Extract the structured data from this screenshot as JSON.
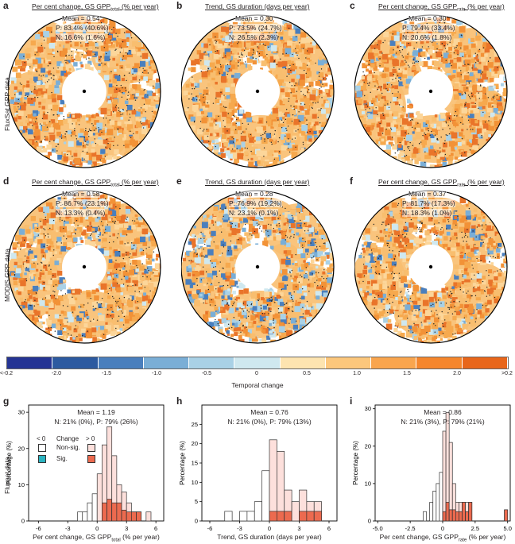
{
  "panels": [
    {
      "label": "a",
      "title": "Per cent change, GS GPP",
      "sub": "total",
      "title_tail": " (% per year)",
      "mean": "Mean = 0.54",
      "p": "P: 83.4% (40.6%)",
      "n": "N: 16.6% (1.6%)"
    },
    {
      "label": "b",
      "title": "Trend, GS duration (days per year)",
      "sub": "",
      "title_tail": "",
      "mean": "Mean = 0.30",
      "p": "P: 73.5% (24.7%)",
      "n": "N: 26.5% (2.3%)"
    },
    {
      "label": "c",
      "title": "Per cent change, GS GPP",
      "sub": "rate",
      "title_tail": " (% per year)",
      "mean": "Mean = 0.30",
      "p": "P: 79.4% (33.4%)",
      "n": "N: 20.6% (1.8%)"
    },
    {
      "label": "d",
      "title": "Per cent change, GS GPP",
      "sub": "total",
      "title_tail": " (% per year)",
      "mean": "Mean = 0.58",
      "p": "P: 86.7% (23.1%)",
      "n": "N: 13.3% (0.4%)"
    },
    {
      "label": "e",
      "title": "Trend, GS duration (days per year)",
      "sub": "",
      "title_tail": "",
      "mean": "Mean = 0.28",
      "p": "P: 76.9% (19.2%)",
      "n": "N: 23.1% (0.1%)"
    },
    {
      "label": "f",
      "title": "Per cent change, GS GPP",
      "sub": "rate",
      "title_tail": " (% per year)",
      "mean": "Mean = 0.37",
      "p": "P: 81.7% (17.3%)",
      "n": "N: 18.3% (1.0%)"
    }
  ],
  "row_labels": {
    "row1": "FluxSat GPP data",
    "row2": "MODIS GPP data",
    "row3_line1": "Fluxnet data",
    "row3_line2": "Percentage (%)"
  },
  "colorbar": {
    "title": "Temporal change",
    "ticks": [
      "<-0.2",
      "-2.0",
      "-1.5",
      "-1.0",
      "-0.5",
      "0",
      "0.5",
      "1.0",
      "1.5",
      "2.0",
      ">0.2"
    ],
    "colors": [
      "#253494",
      "#2c5aa0",
      "#4a7fbd",
      "#7aaed6",
      "#a9d1e6",
      "#cfe8ef",
      "#fde4b0",
      "#fcc77c",
      "#f9a54e",
      "#f5862c",
      "#e8661b"
    ]
  },
  "legend": {
    "lt0": "< 0",
    "change": "Change",
    "gt0": "> 0",
    "nonsig": "Non-sig.",
    "sig": "Sig."
  },
  "colors": {
    "ocean": "#ffffff",
    "land_pos": "#f6b15a",
    "land_neg": "#8fc4dd",
    "sig_pos": "#ec6a4f",
    "nonsig_pos": "#fde0dc",
    "sig_neg": "#2bb3c0"
  },
  "chart_data": [
    {
      "label": "g",
      "type": "bar",
      "title": "Fluxnet percent change GS GPP total",
      "mean": "Mean = 1.19",
      "summary": "N: 21% (0%), P: 79% (26%)",
      "xlabel": "Per cent change, GS GPP",
      "xlabel_sub": "total",
      "xlabel_tail": " (% per year)",
      "ylabel": "Percentage (%)",
      "xlim": [
        -7,
        6.8
      ],
      "ylim": [
        0,
        32
      ],
      "xticks": [
        -6,
        -3,
        0,
        3,
        6
      ],
      "yticks": [
        0,
        10,
        20,
        30
      ],
      "bin_width": 0.5,
      "bins": [
        -2,
        -1.5,
        -1,
        -0.5,
        0,
        0.5,
        1,
        1.5,
        2,
        2.5,
        3,
        3.5,
        4,
        4.5,
        5,
        5.5
      ],
      "total": [
        2.5,
        2.5,
        5,
        7.5,
        13,
        21,
        26,
        18,
        10,
        8,
        5,
        2.5,
        2.5,
        0,
        2.5,
        0
      ],
      "sig": [
        0,
        0,
        0,
        0,
        0,
        5,
        6,
        5,
        5,
        3,
        2.5,
        2.5,
        2.5,
        0,
        0,
        0
      ]
    },
    {
      "label": "h",
      "type": "bar",
      "title": "Fluxnet trend GS duration",
      "mean": "Mean = 0.76",
      "summary": "N: 21% (0%), P: 79% (13%)",
      "xlabel": "Trend, GS duration (days per year)",
      "xlabel_sub": "",
      "xlabel_tail": "",
      "ylabel": "Percentage (%)",
      "xlim": [
        -6.8,
        6.8
      ],
      "ylim": [
        0,
        30
      ],
      "xticks": [
        -6,
        -3,
        0,
        3,
        6
      ],
      "yticks": [
        0,
        5,
        10,
        15,
        20,
        25
      ],
      "bin_width": 0.75,
      "bins": [
        -4.5,
        -3.75,
        -3,
        -2.25,
        -1.5,
        -0.75,
        0,
        0.75,
        1.5,
        2.25,
        3,
        3.75,
        4.5
      ],
      "total": [
        2.5,
        0,
        2.5,
        2.5,
        5,
        13,
        21,
        18,
        8,
        5,
        8,
        5,
        5
      ],
      "sig": [
        0,
        0,
        0,
        0,
        0,
        0,
        2.5,
        2.5,
        2.5,
        0,
        2.5,
        2.5,
        2.5
      ]
    },
    {
      "label": "i",
      "type": "bar",
      "title": "Fluxnet percent change GS GPP rate",
      "mean": "Mean = 0.86",
      "summary": "N: 21% (3%), P: 79% (21%)",
      "xlabel": "Per cent change, GS GPP",
      "xlabel_sub": "rate",
      "xlabel_tail": " (% per year)",
      "ylabel": "Percentage (%)",
      "xlim": [
        -5.2,
        5.2
      ],
      "ylim": [
        0,
        31
      ],
      "xticks": [
        -5,
        -2.5,
        0,
        2.5,
        5
      ],
      "xticklabels": [
        "-5.0",
        "-2.5",
        "0",
        "2.5",
        "5.0"
      ],
      "yticks": [
        0,
        10,
        20,
        30
      ],
      "bin_width": 0.25,
      "bins": [
        -1.5,
        -1.25,
        -1,
        -0.75,
        -0.5,
        -0.25,
        0,
        0.25,
        0.5,
        0.75,
        1,
        1.25,
        1.5,
        1.75,
        2,
        2.25,
        2.5,
        2.75,
        3,
        3.25,
        3.5,
        3.75,
        4,
        4.25,
        4.5,
        4.75
      ],
      "total": [
        2.5,
        0,
        5,
        8,
        10,
        13,
        24,
        29,
        21,
        10,
        5,
        5,
        5,
        5,
        5,
        0,
        0,
        0,
        0,
        0,
        0,
        0,
        0,
        0,
        0,
        3
      ],
      "sig": [
        0,
        0,
        0,
        0,
        0,
        0,
        2.5,
        5,
        3,
        3,
        2.5,
        2.5,
        5,
        2.5,
        5,
        0,
        0,
        0,
        0,
        0,
        0,
        0,
        0,
        0,
        0,
        3
      ]
    }
  ]
}
